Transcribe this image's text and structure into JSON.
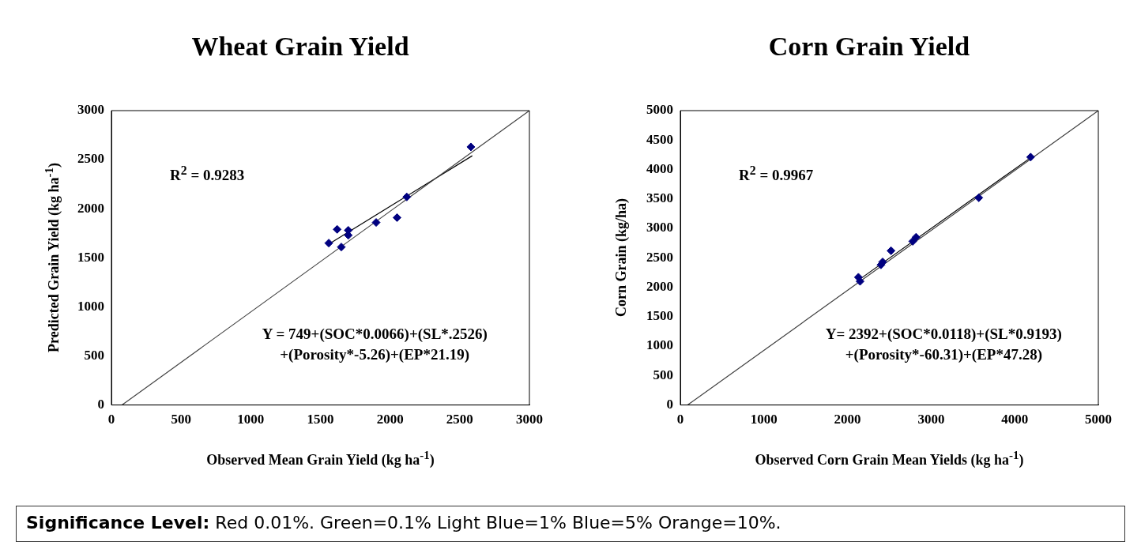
{
  "chart_data": [
    {
      "type": "scatter",
      "title": "Wheat Grain Yield",
      "xlabel": "Observed Mean Grain Yield (kg ha$^{-1}$)",
      "ylabel": "Predicted Grain Yield (kg ha$^{-1}$)",
      "xlim": [
        0,
        3000
      ],
      "ylim": [
        0,
        3000
      ],
      "xticks": [
        0,
        500,
        1000,
        1500,
        2000,
        2500,
        3000
      ],
      "yticks": [
        0,
        500,
        1000,
        1500,
        2000,
        2500,
        3000
      ],
      "grid": false,
      "legend": false,
      "annotations": [
        "R$^{2}$ = 0.9283",
        "Y = 749+(SOC*0.0066)+(SL*.2526)",
        "+(Porosity*-5.26)+(EP*21.19)"
      ],
      "series": [
        {
          "type": "line",
          "marker": "none",
          "color": "#404040",
          "x": [
            76,
            3000
          ],
          "values": [
            0,
            3000
          ]
        },
        {
          "type": "line",
          "marker": "none",
          "color": "#000000",
          "x": [
            1560,
            2590
          ],
          "values": [
            1640,
            2540
          ]
        },
        {
          "type": "scatter",
          "marker": "diamond",
          "color": "#000080",
          "x": [
            1560,
            1620,
            1650,
            1700,
            1700,
            1900,
            2050,
            2120,
            2580
          ],
          "values": [
            1650,
            1790,
            1610,
            1780,
            1730,
            1860,
            1910,
            2120,
            2630
          ]
        }
      ]
    },
    {
      "type": "scatter",
      "title": "Corn Grain Yield",
      "xlabel": "Observed Corn Grain Mean Yields (kg ha$^{-1}$)",
      "ylabel": "Corn Grain (kg/ha)",
      "xlim": [
        0,
        5000
      ],
      "ylim": [
        0,
        5000
      ],
      "xticks": [
        0,
        1000,
        2000,
        3000,
        4000,
        5000
      ],
      "yticks": [
        0,
        500,
        1000,
        1500,
        2000,
        2500,
        3000,
        3500,
        4000,
        4500,
        5000
      ],
      "grid": false,
      "legend": false,
      "annotations": [
        "R$^{2}$ = 0.9967",
        "Y= 2392+(SOC*0.0118)+(SL*0.9193)",
        "+(Porosity*-60.31)+(EP*47.28)"
      ],
      "series": [
        {
          "type": "line",
          "marker": "none",
          "color": "#404040",
          "x": [
            87,
            5000
          ],
          "values": [
            0,
            5000
          ]
        },
        {
          "type": "line",
          "marker": "none",
          "color": "#000000",
          "x": [
            2130,
            4190
          ],
          "values": [
            2120,
            4200
          ]
        },
        {
          "type": "scatter",
          "marker": "diamond",
          "color": "#000080",
          "x": [
            2130,
            2150,
            2400,
            2420,
            2520,
            2780,
            2820,
            3570,
            4190
          ],
          "values": [
            2170,
            2100,
            2380,
            2430,
            2620,
            2780,
            2850,
            3520,
            4210
          ]
        }
      ]
    },
    {
      "type": "other",
      "annotations": [
        "Significance Level:",
        "Red 0.01%.",
        "Green=0.1%",
        "Light Blue=1%",
        "Blue=5%",
        "Orange=10%."
      ]
    }
  ]
}
